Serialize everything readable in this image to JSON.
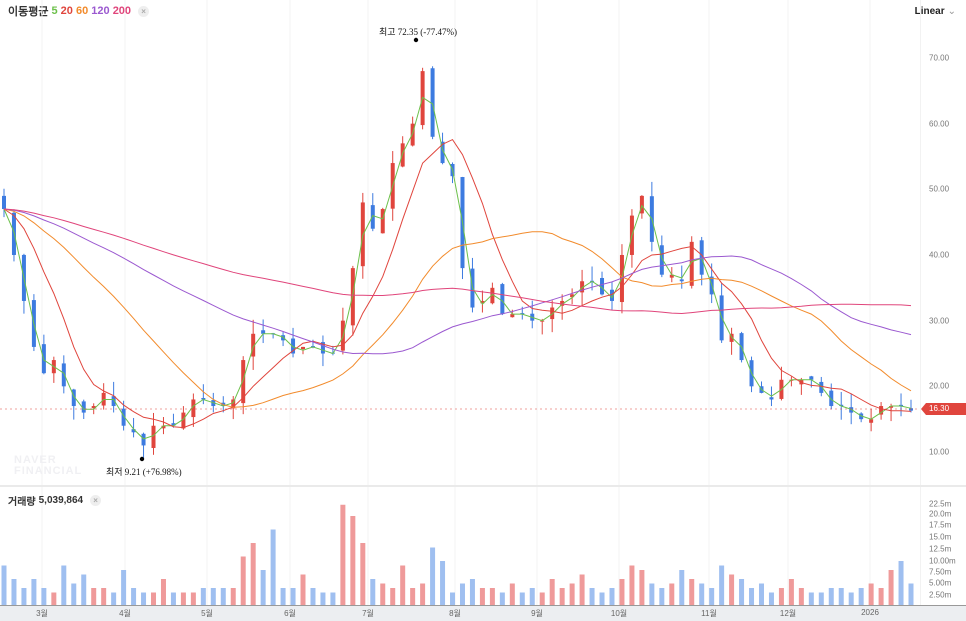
{
  "legend": {
    "title": "이동평균",
    "ma": [
      {
        "label": "5",
        "color": "#6cc04a"
      },
      {
        "label": "20",
        "color": "#e0453d"
      },
      {
        "label": "60",
        "color": "#f28b2c"
      },
      {
        "label": "120",
        "color": "#9b59d0"
      },
      {
        "label": "200",
        "color": "#e0457b"
      }
    ],
    "close": "×"
  },
  "scale": {
    "label": "Linear",
    "chevron": "⌄"
  },
  "price_axis": [
    "70.00",
    "60.00",
    "50.00",
    "40.00",
    "30.00",
    "20.00",
    "10.00"
  ],
  "current_price": "16.30",
  "volume": {
    "label": "거래량",
    "value": "5,039,864",
    "close": "×",
    "axis": [
      "22.5m",
      "20.0m",
      "17.5m",
      "15.0m",
      "12.5m",
      "10.00m",
      "7.50m",
      "5.00m",
      "2.50m"
    ]
  },
  "months": [
    "3월",
    "4월",
    "5월",
    "6월",
    "7월",
    "8월",
    "9월",
    "10월",
    "11월",
    "12월",
    "2026"
  ],
  "annotations": {
    "high": "최고  72.35 (-77.47%)",
    "low": "최저  9.21 (+76.98%)"
  },
  "watermark": "NAVER FINANCIAL",
  "colors": {
    "up": "#e0453d",
    "down": "#3d7be0",
    "vol_up": "#ef9a9a",
    "vol_down": "#9fbff0"
  },
  "chart_data": {
    "type": "candlestick",
    "price_range": [
      5,
      75
    ],
    "closes": [
      47,
      40,
      33,
      26,
      22,
      24,
      20,
      17,
      16,
      17,
      19,
      17,
      14,
      13,
      11,
      14,
      14,
      14,
      16,
      18,
      18,
      17,
      17,
      18,
      24,
      28,
      28,
      28,
      27,
      25,
      26,
      26,
      25,
      25,
      30,
      38,
      48,
      44,
      47,
      54,
      57,
      60,
      68,
      58,
      54,
      52,
      38,
      32,
      33,
      35,
      31,
      31,
      31,
      30,
      30,
      32,
      33,
      34,
      36,
      36,
      34,
      33,
      40,
      46,
      49,
      42,
      37,
      37,
      36,
      42,
      37,
      34,
      27,
      28,
      24,
      20,
      19,
      18,
      21,
      21,
      21,
      21,
      19,
      17,
      17,
      16,
      15,
      15,
      17,
      17,
      17,
      16.3
    ],
    "volumes_m": [
      9,
      6,
      4,
      6,
      4,
      3,
      9,
      5,
      7,
      4,
      4,
      3,
      8,
      4,
      3,
      3,
      6,
      3,
      3,
      3,
      4,
      4,
      4,
      4,
      11,
      14,
      8,
      17,
      4,
      4,
      7,
      4,
      3,
      3,
      22.5,
      20,
      14,
      6,
      5,
      4,
      9,
      4,
      5,
      13,
      10,
      3,
      5,
      6,
      4,
      4,
      3,
      5,
      3,
      4,
      3,
      6,
      4,
      5,
      7,
      4,
      3,
      4,
      6,
      9,
      8,
      5,
      4,
      5,
      8,
      6,
      5,
      4,
      9,
      7,
      6,
      4,
      5,
      3,
      4,
      6,
      4,
      3,
      3,
      4,
      4,
      3,
      4,
      5,
      4,
      8,
      10,
      5
    ]
  }
}
